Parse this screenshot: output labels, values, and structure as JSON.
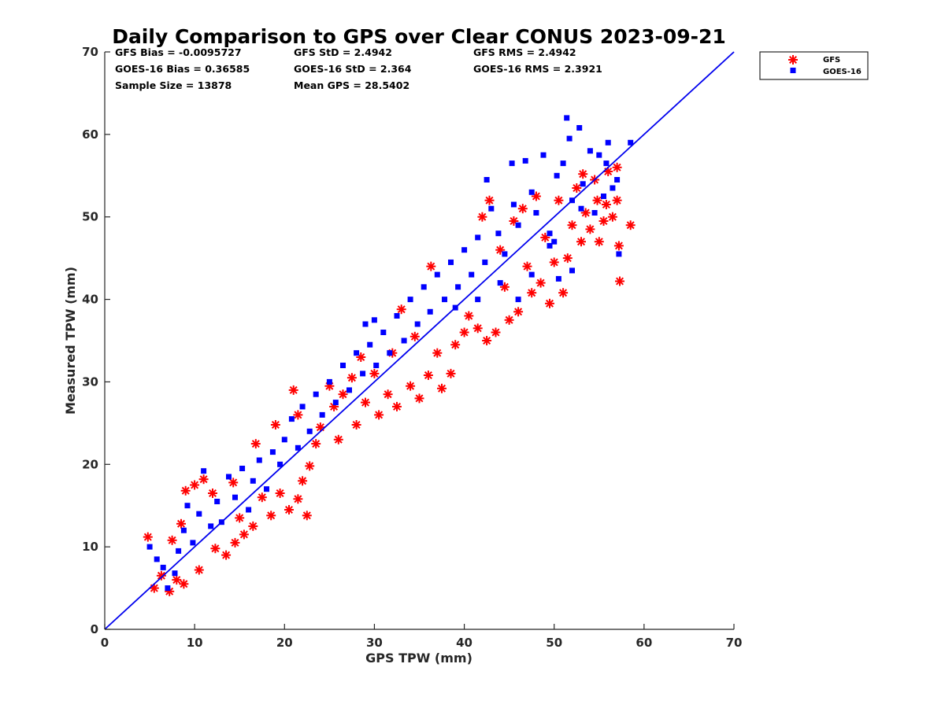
{
  "chart_data": {
    "type": "scatter",
    "title": "Daily Comparison to GPS over Clear CONUS 2023-09-21",
    "xlabel": "GPS TPW (mm)",
    "ylabel": "Measured TPW (mm)",
    "xlim": [
      0,
      70
    ],
    "ylim": [
      0,
      70
    ],
    "xticks": [
      "0",
      "10",
      "20",
      "30",
      "40",
      "50",
      "60",
      "70"
    ],
    "yticks": [
      "0",
      "10",
      "20",
      "30",
      "40",
      "50",
      "60",
      "70"
    ],
    "grid": false,
    "legend_position": "outside top-right",
    "stats": [
      "GFS Bias = -0.0095727",
      "GFS StD = 2.4942",
      "GFS RMS = 2.4942",
      "GOES-16 Bias = 0.36585",
      "GOES-16 StD = 2.364",
      "GOES-16 RMS = 2.3921",
      "Sample Size = 13878",
      "Mean GPS = 28.5402"
    ],
    "reference_line": {
      "name": "1:1 line",
      "x": [
        0,
        70
      ],
      "y": [
        0,
        70
      ],
      "color": "#0000ee"
    },
    "series": [
      {
        "name": "GFS",
        "marker": "asterisk",
        "color": "#ff0000",
        "points": [
          [
            4.8,
            11.2
          ],
          [
            5.5,
            5.0
          ],
          [
            6.3,
            6.5
          ],
          [
            7.2,
            4.6
          ],
          [
            8.0,
            6.0
          ],
          [
            8.8,
            5.5
          ],
          [
            7.5,
            10.8
          ],
          [
            8.5,
            12.8
          ],
          [
            9.0,
            16.8
          ],
          [
            10.0,
            17.5
          ],
          [
            11.0,
            18.2
          ],
          [
            12.0,
            16.5
          ],
          [
            10.5,
            7.2
          ],
          [
            12.3,
            9.8
          ],
          [
            13.5,
            9.0
          ],
          [
            14.5,
            10.5
          ],
          [
            15.5,
            11.5
          ],
          [
            16.5,
            12.5
          ],
          [
            14.3,
            17.8
          ],
          [
            16.8,
            22.5
          ],
          [
            15.0,
            13.5
          ],
          [
            17.5,
            16.0
          ],
          [
            18.5,
            13.8
          ],
          [
            19.0,
            24.8
          ],
          [
            19.5,
            16.5
          ],
          [
            20.5,
            14.5
          ],
          [
            21.0,
            29.0
          ],
          [
            21.5,
            15.8
          ],
          [
            22.5,
            13.8
          ],
          [
            22.0,
            18.0
          ],
          [
            22.8,
            19.8
          ],
          [
            23.5,
            22.5
          ],
          [
            21.5,
            26.0
          ],
          [
            24.0,
            24.5
          ],
          [
            25.0,
            29.5
          ],
          [
            25.5,
            27.0
          ],
          [
            26.0,
            23.0
          ],
          [
            26.5,
            28.5
          ],
          [
            27.5,
            30.5
          ],
          [
            28.0,
            24.8
          ],
          [
            28.5,
            33.0
          ],
          [
            29.0,
            27.5
          ],
          [
            30.0,
            31.0
          ],
          [
            30.5,
            26.0
          ],
          [
            31.5,
            28.5
          ],
          [
            32.0,
            33.5
          ],
          [
            32.5,
            27.0
          ],
          [
            33.0,
            38.8
          ],
          [
            34.0,
            29.5
          ],
          [
            34.5,
            35.5
          ],
          [
            35.0,
            28.0
          ],
          [
            36.0,
            30.8
          ],
          [
            36.3,
            44.0
          ],
          [
            37.0,
            33.5
          ],
          [
            37.5,
            29.2
          ],
          [
            38.5,
            31.0
          ],
          [
            39.0,
            34.5
          ],
          [
            40.0,
            36.0
          ],
          [
            40.5,
            38.0
          ],
          [
            41.5,
            36.5
          ],
          [
            42.0,
            50.0
          ],
          [
            42.5,
            35.0
          ],
          [
            42.8,
            52.0
          ],
          [
            43.5,
            36.0
          ],
          [
            44.0,
            46.0
          ],
          [
            44.5,
            41.5
          ],
          [
            45.0,
            37.5
          ],
          [
            45.5,
            49.5
          ],
          [
            46.0,
            38.5
          ],
          [
            46.5,
            51.0
          ],
          [
            47.0,
            44.0
          ],
          [
            47.5,
            40.8
          ],
          [
            48.0,
            52.5
          ],
          [
            48.5,
            42.0
          ],
          [
            49.0,
            47.5
          ],
          [
            49.5,
            39.5
          ],
          [
            50.0,
            44.5
          ],
          [
            50.5,
            52.0
          ],
          [
            51.0,
            40.8
          ],
          [
            51.5,
            45.0
          ],
          [
            52.0,
            49.0
          ],
          [
            52.5,
            53.5
          ],
          [
            53.0,
            47.0
          ],
          [
            53.5,
            50.5
          ],
          [
            54.0,
            48.5
          ],
          [
            54.5,
            54.5
          ],
          [
            55.0,
            47.0
          ],
          [
            55.5,
            49.5
          ],
          [
            56.0,
            55.5
          ],
          [
            56.5,
            50.0
          ],
          [
            57.0,
            56.0
          ],
          [
            57.3,
            42.2
          ],
          [
            57.2,
            46.5
          ],
          [
            58.5,
            49.0
          ],
          [
            57.0,
            52.0
          ],
          [
            55.8,
            51.5
          ],
          [
            54.8,
            52.0
          ],
          [
            53.2,
            55.2
          ]
        ]
      },
      {
        "name": "GOES-16",
        "marker": "square",
        "color": "#0000ff",
        "points": [
          [
            5.0,
            10.0
          ],
          [
            5.8,
            8.5
          ],
          [
            6.5,
            7.5
          ],
          [
            7.0,
            5.0
          ],
          [
            7.8,
            6.8
          ],
          [
            8.2,
            9.5
          ],
          [
            8.8,
            12.0
          ],
          [
            9.2,
            15.0
          ],
          [
            9.8,
            10.5
          ],
          [
            10.5,
            14.0
          ],
          [
            11.0,
            19.2
          ],
          [
            11.8,
            12.5
          ],
          [
            12.5,
            15.5
          ],
          [
            13.0,
            13.0
          ],
          [
            13.8,
            18.5
          ],
          [
            14.5,
            16.0
          ],
          [
            15.3,
            19.5
          ],
          [
            16.0,
            14.5
          ],
          [
            16.5,
            18.0
          ],
          [
            17.2,
            20.5
          ],
          [
            18.0,
            17.0
          ],
          [
            18.7,
            21.5
          ],
          [
            19.5,
            20.0
          ],
          [
            20.0,
            23.0
          ],
          [
            20.8,
            25.5
          ],
          [
            21.5,
            22.0
          ],
          [
            22.0,
            27.0
          ],
          [
            22.8,
            24.0
          ],
          [
            23.5,
            28.5
          ],
          [
            24.2,
            26.0
          ],
          [
            25.0,
            30.0
          ],
          [
            25.7,
            27.5
          ],
          [
            26.5,
            32.0
          ],
          [
            27.2,
            29.0
          ],
          [
            28.0,
            33.5
          ],
          [
            28.7,
            31.0
          ],
          [
            29.5,
            34.5
          ],
          [
            30.2,
            32.0
          ],
          [
            31.0,
            36.0
          ],
          [
            31.7,
            33.5
          ],
          [
            29.0,
            37.0
          ],
          [
            30.0,
            37.5
          ],
          [
            32.5,
            38.0
          ],
          [
            33.3,
            35.0
          ],
          [
            34.0,
            40.0
          ],
          [
            34.8,
            37.0
          ],
          [
            35.5,
            41.5
          ],
          [
            36.2,
            38.5
          ],
          [
            37.0,
            43.0
          ],
          [
            37.8,
            40.0
          ],
          [
            38.5,
            44.5
          ],
          [
            39.3,
            41.5
          ],
          [
            40.0,
            46.0
          ],
          [
            40.8,
            43.0
          ],
          [
            41.5,
            47.5
          ],
          [
            42.3,
            44.5
          ],
          [
            42.5,
            54.5
          ],
          [
            43.0,
            51.0
          ],
          [
            43.8,
            48.0
          ],
          [
            44.5,
            45.5
          ],
          [
            45.3,
            56.5
          ],
          [
            45.5,
            51.5
          ],
          [
            46.0,
            49.0
          ],
          [
            46.8,
            56.8
          ],
          [
            47.5,
            53.0
          ],
          [
            48.0,
            50.5
          ],
          [
            48.8,
            57.5
          ],
          [
            49.5,
            48.0
          ],
          [
            50.3,
            55.0
          ],
          [
            51.0,
            56.5
          ],
          [
            51.4,
            62.0
          ],
          [
            51.7,
            59.5
          ],
          [
            52.0,
            52.0
          ],
          [
            52.8,
            60.8
          ],
          [
            53.2,
            54.0
          ],
          [
            54.0,
            58.0
          ],
          [
            54.5,
            50.5
          ],
          [
            55.0,
            57.5
          ],
          [
            55.5,
            52.5
          ],
          [
            56.0,
            59.0
          ],
          [
            56.5,
            53.5
          ],
          [
            57.0,
            54.5
          ],
          [
            57.2,
            45.5
          ],
          [
            58.5,
            59.0
          ],
          [
            50.0,
            47.0
          ],
          [
            53.0,
            51.0
          ],
          [
            55.8,
            56.5
          ],
          [
            44.0,
            42.0
          ],
          [
            41.5,
            40.0
          ],
          [
            39.0,
            39.0
          ],
          [
            46.0,
            40.0
          ],
          [
            47.5,
            43.0
          ],
          [
            49.5,
            46.5
          ],
          [
            52.0,
            43.5
          ],
          [
            50.5,
            42.5
          ]
        ]
      }
    ]
  }
}
